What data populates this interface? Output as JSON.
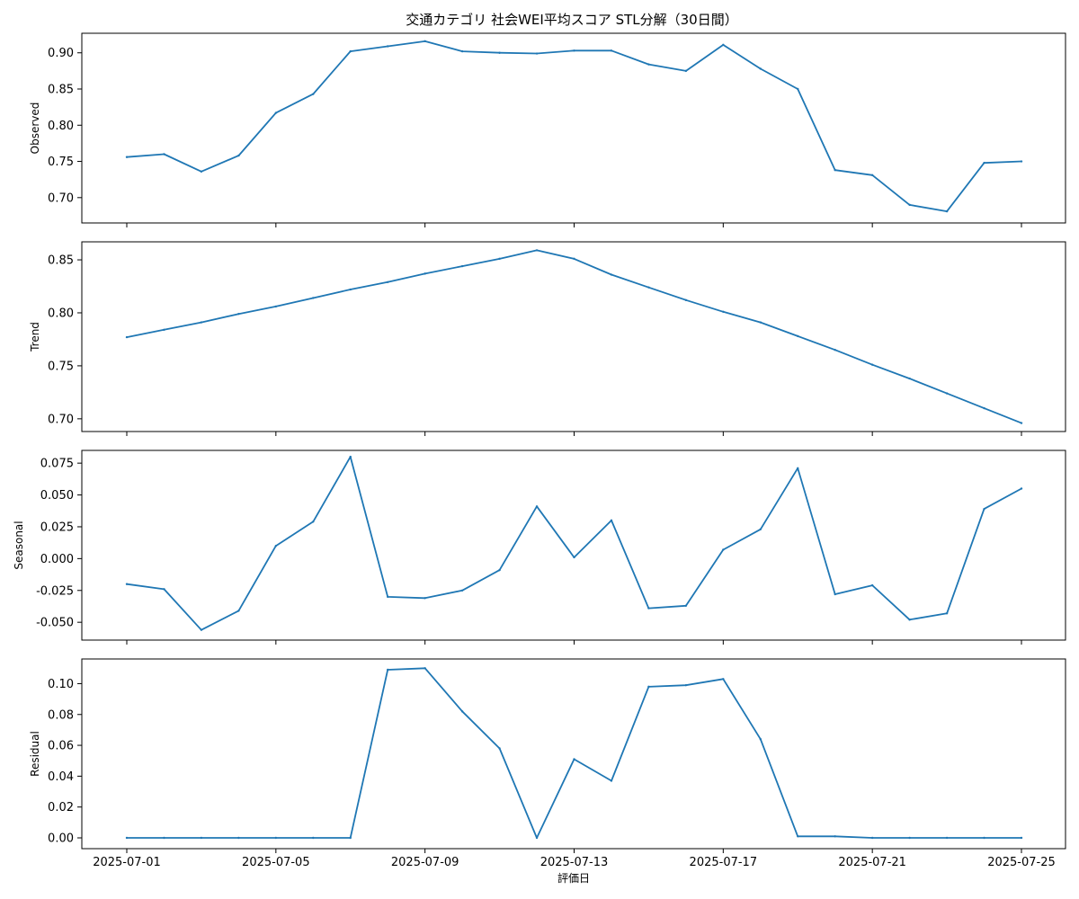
{
  "chart_data": {
    "type": "line",
    "title": "交通カテゴリ 社会WEI平均スコア STL分解（30日間）",
    "xlabel": "評価日",
    "x_ticks": [
      "2025-07-01",
      "2025-07-05",
      "2025-07-09",
      "2025-07-13",
      "2025-07-17",
      "2025-07-21",
      "2025-07-25"
    ],
    "x": [
      "2025-07-01",
      "2025-07-02",
      "2025-07-03",
      "2025-07-04",
      "2025-07-05",
      "2025-07-06",
      "2025-07-07",
      "2025-07-08",
      "2025-07-09",
      "2025-07-10",
      "2025-07-11",
      "2025-07-12",
      "2025-07-13",
      "2025-07-14",
      "2025-07-15",
      "2025-07-16",
      "2025-07-17",
      "2025-07-18",
      "2025-07-19",
      "2025-07-20",
      "2025-07-21",
      "2025-07-22",
      "2025-07-23",
      "2025-07-24",
      "2025-07-25"
    ],
    "line_color": "#1f77b4",
    "panels": [
      {
        "ylabel": "Observed",
        "ylim": [
          0.665,
          0.927
        ],
        "yticks": [
          "0.70",
          "0.75",
          "0.80",
          "0.85",
          "0.90"
        ],
        "values": [
          0.756,
          0.76,
          0.736,
          0.758,
          0.817,
          0.843,
          0.902,
          0.909,
          0.916,
          0.902,
          0.9,
          0.899,
          0.903,
          0.903,
          0.884,
          0.875,
          0.911,
          0.878,
          0.85,
          0.738,
          0.731,
          0.69,
          0.681,
          0.748,
          0.75
        ]
      },
      {
        "ylabel": "Trend",
        "ylim": [
          0.688,
          0.867
        ],
        "yticks": [
          "0.70",
          "0.75",
          "0.80",
          "0.85"
        ],
        "values": [
          0.777,
          0.784,
          0.791,
          0.799,
          0.806,
          0.814,
          0.822,
          0.829,
          0.837,
          0.844,
          0.851,
          0.859,
          0.851,
          0.836,
          0.824,
          0.812,
          0.801,
          0.791,
          0.778,
          0.765,
          0.751,
          0.738,
          0.724,
          0.71,
          0.696
        ]
      },
      {
        "ylabel": "Seasonal",
        "ylim": [
          -0.064,
          0.085
        ],
        "yticks": [
          "-0.050",
          "-0.025",
          "0.000",
          "0.025",
          "0.050",
          "0.075"
        ],
        "values": [
          -0.02,
          -0.024,
          -0.056,
          -0.041,
          0.01,
          0.029,
          0.08,
          -0.03,
          -0.031,
          -0.025,
          -0.009,
          0.041,
          0.001,
          0.03,
          -0.039,
          -0.037,
          0.007,
          0.023,
          0.071,
          -0.028,
          -0.021,
          -0.048,
          -0.043,
          0.039,
          0.055
        ]
      },
      {
        "ylabel": "Residual",
        "ylim": [
          -0.007,
          0.116
        ],
        "yticks": [
          "0.00",
          "0.02",
          "0.04",
          "0.06",
          "0.08",
          "0.10"
        ],
        "values": [
          0.0,
          0.0,
          0.0,
          0.0,
          0.0,
          0.0,
          0.0,
          0.109,
          0.11,
          0.082,
          0.058,
          0.0,
          0.051,
          0.037,
          0.098,
          0.099,
          0.103,
          0.064,
          0.001,
          0.001,
          0.0,
          0.0,
          0.0,
          0.0,
          0.0
        ]
      }
    ]
  }
}
